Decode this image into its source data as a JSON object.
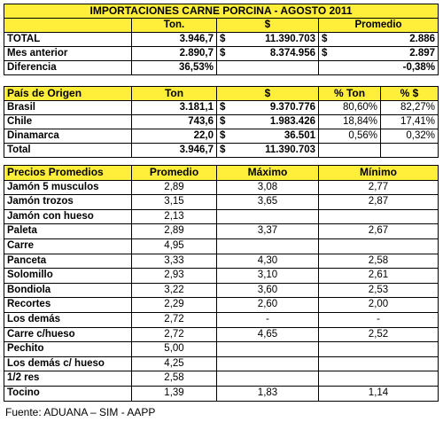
{
  "summary": {
    "title": "IMPORTACIONES CARNE PORCINA - AGOSTO 2011",
    "headers": [
      "Ton.",
      "$",
      "Promedio"
    ],
    "rows": [
      {
        "label": "TOTAL",
        "ton": "3.946,7",
        "pesos": "11.390.703",
        "prom": "2.886"
      },
      {
        "label": "Mes anterior",
        "ton": "2.890,7",
        "pesos": "8.374.956",
        "prom": "2.897"
      },
      {
        "label": "Diferencia",
        "ton": "36,53%",
        "pesos": "",
        "prom": "-0,38%"
      }
    ],
    "currency_symbol": "$"
  },
  "origin": {
    "headers": [
      "País de Origen",
      "Ton",
      "$",
      "% Ton",
      "% $"
    ],
    "rows": [
      {
        "label": "Brasil",
        "ton": "3.181,1",
        "pesos": "9.370.776",
        "pct_ton": "80,60%",
        "pct_pesos": "82,27%"
      },
      {
        "label": "Chile",
        "ton": "743,6",
        "pesos": "1.983.426",
        "pct_ton": "18,84%",
        "pct_pesos": "17,41%"
      },
      {
        "label": "Dinamarca",
        "ton": "22,0",
        "pesos": "36.501",
        "pct_ton": "0,56%",
        "pct_pesos": "0,32%"
      },
      {
        "label": "Total",
        "ton": "3.946,7",
        "pesos": "11.390.703",
        "pct_ton": "",
        "pct_pesos": ""
      }
    ],
    "currency_symbol": "$"
  },
  "prices": {
    "headers": [
      "Precios Promedios",
      "Promedio",
      "Máximo",
      "Mínimo"
    ],
    "rows": [
      {
        "label": "Jamón 5 musculos",
        "prom": "2,89",
        "max": "3,08",
        "min": "2,77"
      },
      {
        "label": "Jamón trozos",
        "prom": "3,15",
        "max": "3,65",
        "min": "2,87"
      },
      {
        "label": "Jamón con hueso",
        "prom": "2,13",
        "max": "",
        "min": ""
      },
      {
        "label": "Paleta",
        "prom": "2,89",
        "max": "3,37",
        "min": "2,67"
      },
      {
        "label": "Carre",
        "prom": "4,95",
        "max": "",
        "min": ""
      },
      {
        "label": "Panceta",
        "prom": "3,33",
        "max": "4,30",
        "min": "2,58"
      },
      {
        "label": "Solomillo",
        "prom": "2,93",
        "max": "3,10",
        "min": "2,61"
      },
      {
        "label": "Bondiola",
        "prom": "3,22",
        "max": "3,60",
        "min": "2,53"
      },
      {
        "label": "Recortes",
        "prom": "2,29",
        "max": "2,60",
        "min": "2,00"
      },
      {
        "label": "Los demás",
        "prom": "2,72",
        "max": "-",
        "min": "-"
      },
      {
        "label": "Carre c/hueso",
        "prom": "2,72",
        "max": "4,65",
        "min": "2,52"
      },
      {
        "label": "Pechito",
        "prom": "5,00",
        "max": "",
        "min": ""
      },
      {
        "label": "Los demás c/ hueso",
        "prom": "4,25",
        "max": "",
        "min": ""
      },
      {
        "label": "1/2 res",
        "prom": "2,58",
        "max": "",
        "min": ""
      },
      {
        "label": "Tocino",
        "prom": "1,39",
        "max": "1,83",
        "min": "1,14"
      }
    ]
  },
  "source": "Fuente: ADUANA – SIM - AAPP"
}
